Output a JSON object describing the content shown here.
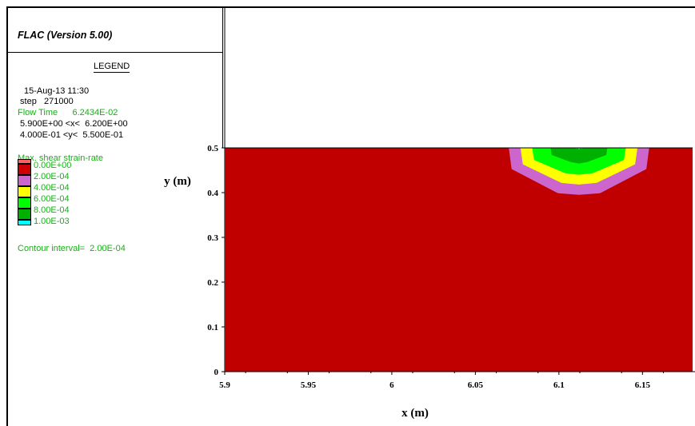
{
  "program_title": "FLAC (Version 5.00)",
  "legend": {
    "heading": "LEGEND",
    "datetime": "15-Aug-13 11:30",
    "step": " step   271000",
    "flow_time": "Flow Time      6.2434E-02",
    "x_range": " 5.900E+00 <x<  6.200E+00",
    "y_range": " 4.000E-01 <y<  5.500E-01",
    "contour_title": "Max. shear strain-rate",
    "contour_levels": [
      {
        "label": "0.00E+00",
        "color": "#cc0000"
      },
      {
        "label": "2.00E-04",
        "color": "#cc66cc"
      },
      {
        "label": "4.00E-04",
        "color": "#ffff00"
      },
      {
        "label": "6.00E-04",
        "color": "#00ff00"
      },
      {
        "label": "8.00E-04",
        "color": "#00b000"
      },
      {
        "label": "1.00E-03",
        "color": "#00ffff"
      }
    ],
    "contour_interval": "Contour interval=  2.00E-04",
    "top_swatch_color": "#ff6060"
  },
  "chart_data": {
    "type": "heatmap",
    "xlabel": "x (m)",
    "ylabel": "y (m)",
    "xlim": [
      5.9,
      6.18
    ],
    "ylim": [
      0,
      0.5
    ],
    "x_ticks": [
      "5.9",
      "5.95",
      "6",
      "6.05",
      "6.1",
      "6.15",
      "6.2"
    ],
    "x_tick_values": [
      5.9,
      5.95,
      6.0,
      6.05,
      6.1,
      6.15,
      6.2
    ],
    "y_ticks": [
      "0",
      "0.1",
      "0.2",
      "0.3",
      "0.4",
      "0.5"
    ],
    "y_tick_values": [
      0,
      0.1,
      0.2,
      0.3,
      0.4,
      0.5
    ],
    "background_color": "#c00000",
    "contour_center_x": 6.112,
    "bands": [
      {
        "level": "2.00E-04",
        "color": "#cc66cc",
        "half_width_top": 0.042,
        "bottom_y": 0.395
      },
      {
        "level": "4.00E-04",
        "color": "#ffff00",
        "half_width_top": 0.035,
        "bottom_y": 0.418
      },
      {
        "level": "6.00E-04",
        "color": "#00ff00",
        "half_width_top": 0.028,
        "bottom_y": 0.44
      },
      {
        "level": "8.00E-04",
        "color": "#00b000",
        "half_width_top": 0.017,
        "bottom_y": 0.465
      },
      {
        "level": "1.00E-03",
        "color": "#00ffff",
        "half_width_top": 0.002,
        "bottom_y": 0.496
      }
    ]
  }
}
